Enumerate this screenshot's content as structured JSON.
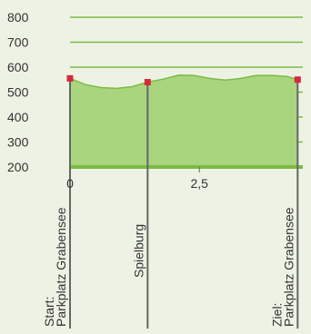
{
  "chart_data": {
    "type": "area",
    "title": "",
    "xlabel": "",
    "ylabel": "",
    "xlim": [
      0,
      4.5
    ],
    "ylim": [
      200,
      800
    ],
    "y_ticks": [
      "800",
      "700",
      "600",
      "500",
      "400",
      "300",
      "200"
    ],
    "x_ticks": [
      "0",
      "2,5"
    ],
    "grid": true,
    "x": [
      0,
      0.3,
      0.6,
      0.9,
      1.2,
      1.5,
      1.8,
      2.1,
      2.4,
      2.7,
      3.0,
      3.3,
      3.6,
      3.9,
      4.2,
      4.4
    ],
    "y": [
      555,
      530,
      518,
      515,
      522,
      540,
      552,
      568,
      567,
      555,
      548,
      555,
      567,
      567,
      563,
      550
    ],
    "waypoints": [
      {
        "label": "Start: Parkplatz Grabensee",
        "x": 0,
        "y": 555
      },
      {
        "label": "Spielburg",
        "x": 1.5,
        "y": 540
      },
      {
        "label": "Ziel: Parkplatz Grabensee",
        "x": 4.4,
        "y": 550
      }
    ],
    "colors": {
      "area_fill": "#a9d57e",
      "line": "#7cbb45",
      "grid": "#7cbb45",
      "marker": "#d42a3a",
      "vline": "#666666",
      "background": "#eef2e4"
    }
  }
}
